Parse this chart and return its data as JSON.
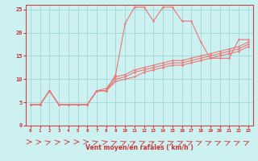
{
  "xlabel": "Vent moyen/en rafales ( km/h )",
  "background_color": "#cdf0f0",
  "grid_color": "#a0d8d8",
  "line_color": "#e87878",
  "xlim": [
    -0.5,
    23.5
  ],
  "ylim": [
    0,
    26
  ],
  "xticks": [
    0,
    1,
    2,
    3,
    4,
    5,
    6,
    7,
    8,
    9,
    10,
    11,
    12,
    13,
    14,
    15,
    16,
    17,
    18,
    19,
    20,
    21,
    22,
    23
  ],
  "yticks": [
    0,
    5,
    10,
    15,
    20,
    25
  ],
  "line1_x": [
    0,
    1,
    2,
    3,
    4,
    5,
    6,
    7,
    8,
    9,
    10,
    11,
    12,
    13,
    14,
    15,
    16,
    17,
    18,
    19,
    20,
    21,
    22,
    23
  ],
  "line1_y": [
    4.5,
    4.5,
    7.5,
    4.5,
    4.5,
    4.5,
    4.5,
    7.5,
    7.5,
    11.0,
    22.0,
    25.5,
    25.5,
    22.5,
    25.5,
    25.5,
    22.5,
    22.5,
    18.0,
    14.5,
    14.5,
    14.5,
    18.5,
    18.5
  ],
  "line2_x": [
    0,
    1,
    2,
    3,
    4,
    5,
    6,
    7,
    8,
    9,
    10,
    11,
    12,
    13,
    14,
    15,
    16,
    17,
    18,
    19,
    20,
    21,
    22,
    23
  ],
  "line2_y": [
    4.5,
    4.5,
    7.5,
    4.5,
    4.5,
    4.5,
    4.5,
    7.5,
    8.0,
    10.5,
    11.0,
    12.0,
    12.5,
    13.0,
    13.5,
    14.0,
    14.0,
    14.5,
    15.0,
    15.5,
    16.0,
    16.5,
    17.0,
    18.0
  ],
  "line3_x": [
    0,
    1,
    2,
    3,
    4,
    5,
    6,
    7,
    8,
    9,
    10,
    11,
    12,
    13,
    14,
    15,
    16,
    17,
    18,
    19,
    20,
    21,
    22,
    23
  ],
  "line3_y": [
    4.5,
    4.5,
    7.5,
    4.5,
    4.5,
    4.5,
    4.5,
    7.5,
    7.5,
    10.0,
    10.5,
    11.5,
    12.0,
    12.5,
    13.0,
    13.5,
    13.5,
    14.0,
    14.5,
    15.0,
    15.5,
    16.0,
    16.5,
    17.5
  ],
  "line4_x": [
    0,
    1,
    2,
    3,
    4,
    5,
    6,
    7,
    8,
    9,
    10,
    11,
    12,
    13,
    14,
    15,
    16,
    17,
    18,
    19,
    20,
    21,
    22,
    23
  ],
  "line4_y": [
    4.5,
    4.5,
    7.5,
    4.5,
    4.5,
    4.5,
    4.5,
    7.5,
    7.5,
    9.5,
    10.0,
    10.5,
    11.5,
    12.0,
    12.5,
    13.0,
    13.0,
    13.5,
    14.0,
    14.5,
    15.0,
    15.5,
    16.0,
    17.0
  ],
  "arrow_angles": [
    90,
    80,
    60,
    70,
    80,
    90,
    85,
    60,
    65,
    55,
    50,
    45,
    50,
    45,
    50,
    50,
    50,
    50,
    50,
    50,
    50,
    50,
    50,
    50
  ]
}
